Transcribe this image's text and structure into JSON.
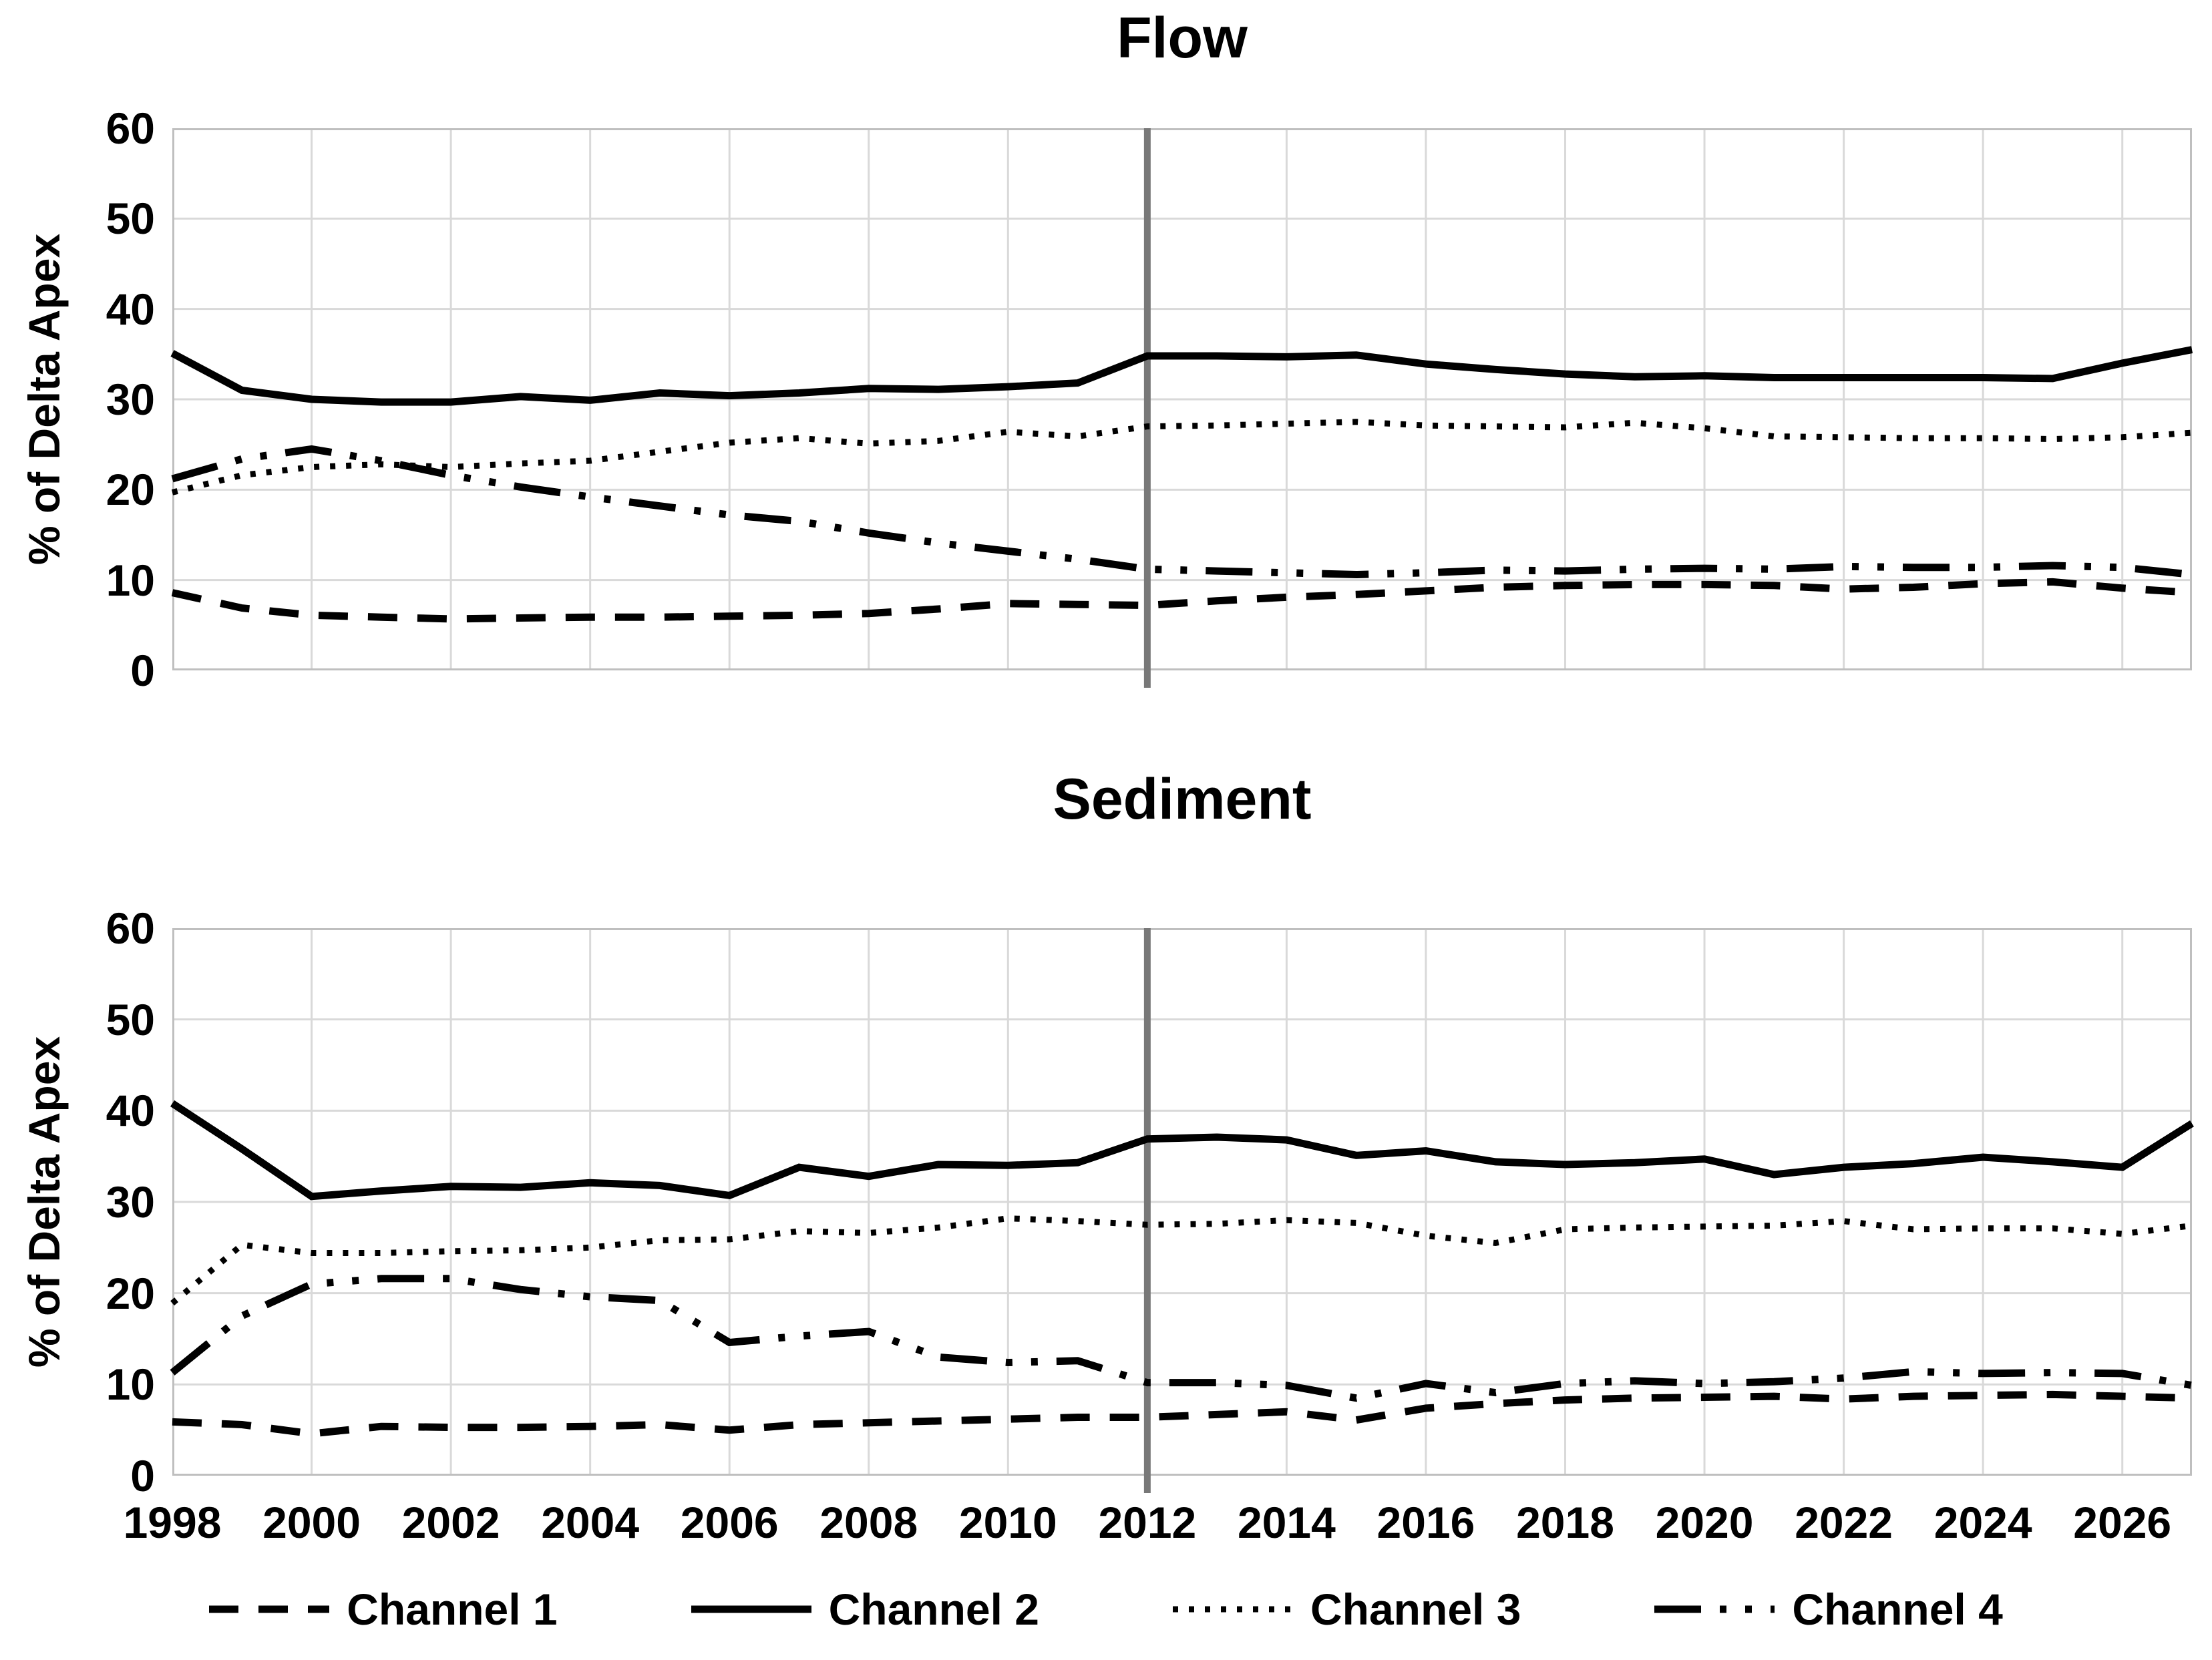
{
  "colors": {
    "series": "#000000",
    "gridline": "#d9d9d9",
    "axis": "#bfbfbf",
    "marker": "#787878",
    "text": "#000000",
    "background": "#ffffff"
  },
  "legend": {
    "items": [
      {
        "label": "Channel 1",
        "line_style": "dashed"
      },
      {
        "label": "Channel 2",
        "line_style": "solid"
      },
      {
        "label": "Channel 3",
        "line_style": "dotted"
      },
      {
        "label": "Channel 4",
        "line_style": "dash-dot-dot"
      }
    ],
    "position": "bottom"
  },
  "chart_data": [
    {
      "type": "line",
      "title": "Flow",
      "ylabel": "% of Delta Apex",
      "xlabel": "",
      "ylim": [
        0,
        60
      ],
      "yticks": [
        0,
        10,
        20,
        30,
        40,
        50,
        60
      ],
      "xticks": [
        1998,
        2000,
        2002,
        2004,
        2006,
        2008,
        2010,
        2012,
        2014,
        2016,
        2018,
        2020,
        2022,
        2024,
        2026
      ],
      "x": [
        1998,
        1999,
        2000,
        2001,
        2002,
        2003,
        2004,
        2005,
        2006,
        2007,
        2008,
        2009,
        2010,
        2011,
        2012,
        2013,
        2014,
        2015,
        2016,
        2017,
        2018,
        2019,
        2020,
        2021,
        2022,
        2023,
        2024,
        2025,
        2026,
        2027
      ],
      "grid": true,
      "marker_x": 2012,
      "series": [
        {
          "name": "Channel 1",
          "line_style": "dashed",
          "values": [
            8.6,
            6.9,
            6.1,
            5.9,
            5.7,
            5.8,
            5.9,
            5.9,
            6.0,
            6.1,
            6.3,
            6.8,
            7.4,
            7.3,
            7.2,
            7.7,
            8.1,
            8.4,
            8.8,
            9.2,
            9.4,
            9.5,
            9.5,
            9.4,
            9.0,
            9.2,
            9.6,
            9.8,
            9.1,
            8.6
          ]
        },
        {
          "name": "Channel 2",
          "line_style": "solid",
          "values": [
            35.1,
            31.0,
            30.0,
            29.7,
            29.7,
            30.3,
            29.9,
            30.7,
            30.4,
            30.7,
            31.2,
            31.1,
            31.4,
            31.8,
            34.8,
            34.8,
            34.7,
            34.9,
            33.9,
            33.3,
            32.8,
            32.5,
            32.6,
            32.4,
            32.4,
            32.4,
            32.4,
            32.3,
            34.0,
            35.5
          ]
        },
        {
          "name": "Channel 3",
          "line_style": "dotted",
          "values": [
            19.7,
            21.6,
            22.5,
            22.8,
            22.5,
            22.9,
            23.2,
            24.2,
            25.2,
            25.7,
            25.1,
            25.4,
            26.4,
            25.9,
            27.0,
            27.1,
            27.3,
            27.5,
            27.1,
            27.0,
            26.9,
            27.4,
            26.8,
            25.9,
            25.8,
            25.7,
            25.7,
            25.6,
            25.8,
            26.3
          ]
        },
        {
          "name": "Channel 4",
          "line_style": "dash-dot-dot",
          "values": [
            21.2,
            23.4,
            24.5,
            23.2,
            21.6,
            20.3,
            19.2,
            18.2,
            17.2,
            16.5,
            15.2,
            14.1,
            13.2,
            12.3,
            11.2,
            11.0,
            10.8,
            10.6,
            10.8,
            11.1,
            11.0,
            11.2,
            11.3,
            11.2,
            11.5,
            11.4,
            11.4,
            11.6,
            11.4,
            10.6
          ]
        }
      ]
    },
    {
      "type": "line",
      "title": "Sediment",
      "ylabel": "% of Delta Apex",
      "xlabel": "",
      "ylim": [
        0,
        60
      ],
      "yticks": [
        0,
        10,
        20,
        30,
        40,
        50,
        60
      ],
      "xticks": [
        1998,
        2000,
        2002,
        2004,
        2006,
        2008,
        2010,
        2012,
        2014,
        2016,
        2018,
        2020,
        2022,
        2024,
        2026
      ],
      "x": [
        1998,
        1999,
        2000,
        2001,
        2002,
        2003,
        2004,
        2005,
        2006,
        2007,
        2008,
        2009,
        2010,
        2011,
        2012,
        2013,
        2014,
        2015,
        2016,
        2017,
        2018,
        2019,
        2020,
        2021,
        2022,
        2023,
        2024,
        2025,
        2026,
        2027
      ],
      "grid": true,
      "marker_x": 2012,
      "series": [
        {
          "name": "Channel 1",
          "line_style": "dashed",
          "values": [
            5.9,
            5.6,
            4.6,
            5.4,
            5.3,
            5.3,
            5.4,
            5.6,
            5.0,
            5.6,
            5.8,
            6.0,
            6.2,
            6.4,
            6.4,
            6.7,
            7.0,
            6.1,
            7.4,
            7.9,
            8.3,
            8.5,
            8.6,
            8.7,
            8.4,
            8.7,
            8.8,
            8.9,
            8.7,
            8.5
          ]
        },
        {
          "name": "Channel 2",
          "line_style": "solid",
          "values": [
            40.8,
            35.8,
            30.6,
            31.2,
            31.7,
            31.6,
            32.1,
            31.8,
            30.7,
            33.8,
            32.8,
            34.1,
            34.0,
            34.3,
            36.9,
            37.1,
            36.8,
            35.1,
            35.6,
            34.4,
            34.1,
            34.3,
            34.7,
            33.0,
            33.8,
            34.2,
            34.9,
            34.4,
            33.8,
            38.6
          ]
        },
        {
          "name": "Channel 3",
          "line_style": "dotted",
          "values": [
            18.9,
            25.3,
            24.4,
            24.4,
            24.6,
            24.7,
            25.0,
            25.8,
            25.9,
            26.8,
            26.6,
            27.2,
            28.2,
            27.9,
            27.5,
            27.6,
            28.0,
            27.7,
            26.3,
            25.5,
            27.0,
            27.2,
            27.3,
            27.4,
            27.9,
            27.0,
            27.1,
            27.1,
            26.5,
            27.4
          ]
        },
        {
          "name": "Channel 4",
          "line_style": "dash-dot-dot",
          "values": [
            11.3,
            17.5,
            21.0,
            21.6,
            21.6,
            20.4,
            19.6,
            19.2,
            14.6,
            15.3,
            15.8,
            13.0,
            12.4,
            12.6,
            10.2,
            10.2,
            9.9,
            8.5,
            10.1,
            9.1,
            10.1,
            10.4,
            10.1,
            10.3,
            10.7,
            11.4,
            11.2,
            11.3,
            11.2,
            9.9
          ]
        }
      ]
    }
  ]
}
